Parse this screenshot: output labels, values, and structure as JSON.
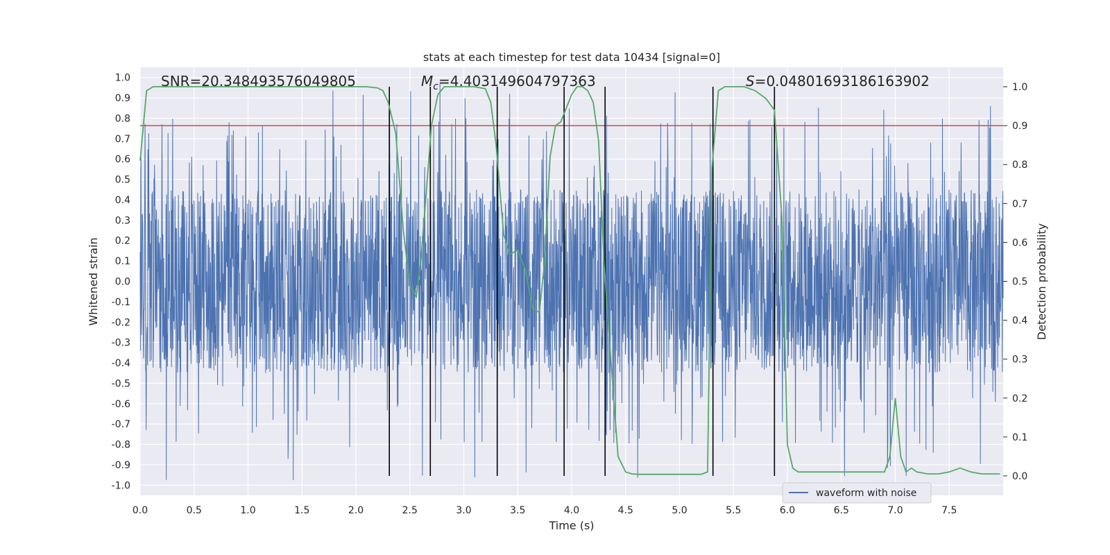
{
  "chart_data": {
    "type": "line",
    "title": "stats at each timestep for test data 10434 [signal=0]",
    "xlabel": "Time (s)",
    "ylabel_left": "Whitened strain",
    "ylabel_right": "Detection probability",
    "xlim": [
      0.0,
      8.0
    ],
    "ylim_left": [
      -1.05,
      1.05
    ],
    "ylim_right": [
      -0.05,
      1.05
    ],
    "x_ticks": [
      "0.0",
      "0.5",
      "1.0",
      "1.5",
      "2.0",
      "2.5",
      "3.0",
      "3.5",
      "4.0",
      "4.5",
      "5.0",
      "5.5",
      "6.0",
      "6.5",
      "7.0",
      "7.5"
    ],
    "y_left_ticks": [
      "1.0",
      "0.9",
      "0.8",
      "0.7",
      "0.6",
      "0.5",
      "0.4",
      "0.3",
      "0.2",
      "0.1",
      "0.0",
      "-0.1",
      "-0.2",
      "-0.3",
      "-0.4",
      "-0.5",
      "-0.6",
      "-0.7",
      "-0.8",
      "-0.9",
      "-1.0"
    ],
    "y_right_ticks": [
      "1.0",
      "0.9",
      "0.8",
      "0.7",
      "0.6",
      "0.5",
      "0.4",
      "0.3",
      "0.2",
      "0.1",
      "0.0"
    ],
    "annotations": {
      "snr": "SNR=20.348493576049805",
      "mc_symbol": "M",
      "mc_sub": "c",
      "mc_value": "=4.403149604797363",
      "s_symbol": "S",
      "s_value": "=0.04801693186163902"
    },
    "grid": true,
    "legend_position": "bottom-right",
    "legend": [
      {
        "name": "waveform with noise",
        "color": "#4c72b0"
      }
    ],
    "colors": {
      "background": "#eaeaf2",
      "waveform": "#4c72b0",
      "probability": "#55a868",
      "threshold": "#c44e52",
      "markers": "#000000"
    },
    "threshold_probability": 0.9,
    "vertical_markers_s": [
      2.31,
      2.69,
      3.31,
      3.93,
      4.31,
      5.31,
      5.88
    ],
    "waveform_envelope": {
      "typical_abs_amplitude": 0.45,
      "max_positive": 0.98,
      "max_negative": -0.98
    },
    "series": [
      {
        "name": "",
        "axis": "right",
        "color": "#55a868",
        "x": [
          0.0,
          0.06,
          0.12,
          0.2,
          0.4,
          0.8,
          1.2,
          1.6,
          2.0,
          2.1,
          2.2,
          2.25,
          2.3,
          2.37,
          2.44,
          2.5,
          2.56,
          2.6,
          2.65,
          2.7,
          2.76,
          2.82,
          2.9,
          3.0,
          3.1,
          3.2,
          3.25,
          3.3,
          3.37,
          3.43,
          3.5,
          3.57,
          3.64,
          3.7,
          3.75,
          3.8,
          3.85,
          3.9,
          4.0,
          4.05,
          4.1,
          4.15,
          4.2,
          4.25,
          4.3,
          4.36,
          4.43,
          4.5,
          4.56,
          4.62,
          4.7,
          4.8,
          5.0,
          5.2,
          5.26,
          5.3,
          5.36,
          5.42,
          5.5,
          5.6,
          5.7,
          5.8,
          5.88,
          5.95,
          6.0,
          6.05,
          6.1,
          6.2,
          6.4,
          6.6,
          6.8,
          6.85,
          6.9,
          6.95,
          7.0,
          7.05,
          7.1,
          7.15,
          7.2,
          7.3,
          7.4,
          7.5,
          7.6,
          7.7,
          7.8,
          7.97
        ],
        "y": [
          0.81,
          0.99,
          1.0,
          1.0,
          1.0,
          1.0,
          1.0,
          1.0,
          1.0,
          1.0,
          0.997,
          0.99,
          0.96,
          0.88,
          0.63,
          0.49,
          0.46,
          0.55,
          0.72,
          0.9,
          0.98,
          1.0,
          1.0,
          1.0,
          1.0,
          0.995,
          0.96,
          0.85,
          0.62,
          0.57,
          0.58,
          0.53,
          0.43,
          0.42,
          0.55,
          0.82,
          0.9,
          0.91,
          0.98,
          1.0,
          1.0,
          0.99,
          0.96,
          0.86,
          0.55,
          0.31,
          0.05,
          0.01,
          0.005,
          0.004,
          0.004,
          0.004,
          0.004,
          0.004,
          0.01,
          0.79,
          0.99,
          1.0,
          1.0,
          1.0,
          0.99,
          0.97,
          0.94,
          0.66,
          0.08,
          0.02,
          0.01,
          0.01,
          0.01,
          0.01,
          0.01,
          0.01,
          0.01,
          0.05,
          0.2,
          0.05,
          0.01,
          0.02,
          0.01,
          0.005,
          0.005,
          0.01,
          0.02,
          0.01,
          0.005,
          0.005
        ]
      }
    ]
  }
}
